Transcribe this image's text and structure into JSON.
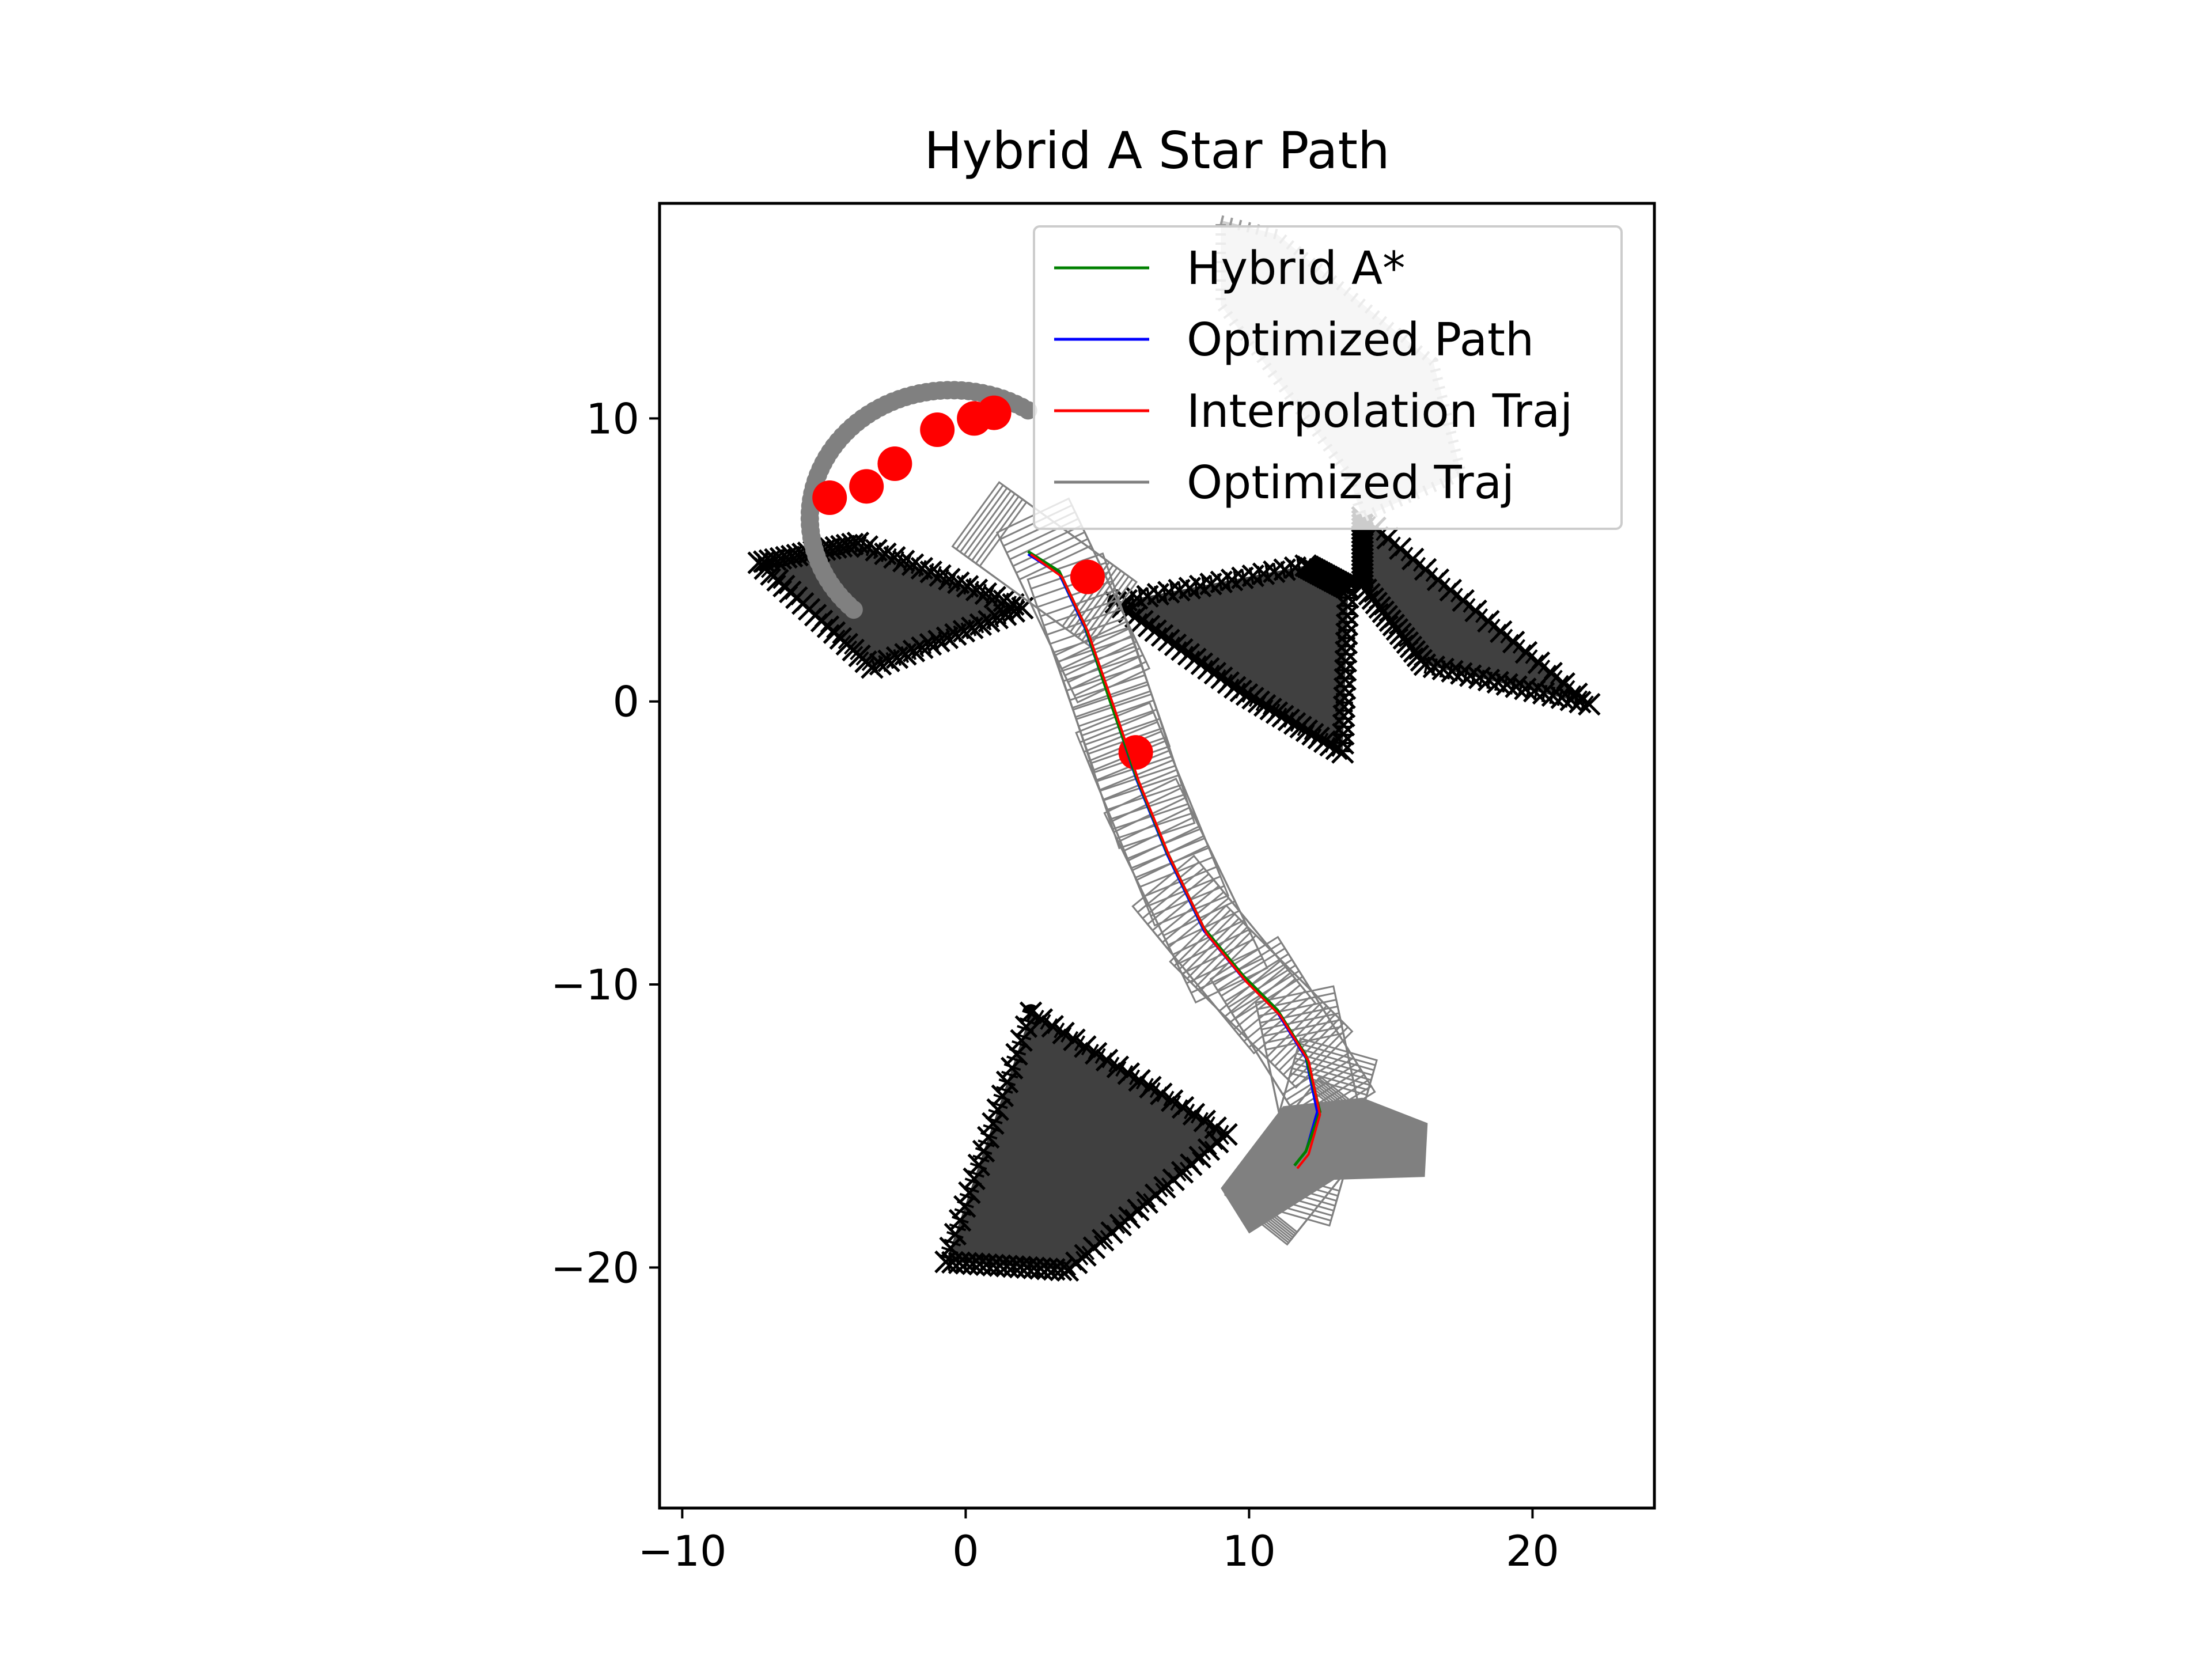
{
  "chart_data": {
    "type": "scatter",
    "title": "Hybrid A Star Path",
    "xlabel": "",
    "ylabel": "",
    "xlim": [
      -10.8,
      24.3
    ],
    "ylim": [
      -28.5,
      17.6
    ],
    "xticks": [
      {
        "value": -10,
        "label": "−10"
      },
      {
        "value": 0,
        "label": "0"
      },
      {
        "value": 10,
        "label": "10"
      },
      {
        "value": 20,
        "label": "20"
      }
    ],
    "yticks": [
      {
        "value": 10,
        "label": "10"
      },
      {
        "value": 0,
        "label": "0"
      },
      {
        "value": -10,
        "label": "−10"
      },
      {
        "value": -20,
        "label": "−20"
      }
    ],
    "grid": false,
    "legend": {
      "position": "top-right",
      "entries": [
        {
          "label": "Hybrid A*",
          "color": "#008000"
        },
        {
          "label": "Optimized Path",
          "color": "#0000ff"
        },
        {
          "label": "Interpolation Traj",
          "color": "#ff0000"
        },
        {
          "label": "Optimized Traj",
          "color": "#808080"
        }
      ]
    },
    "obstacles": [
      {
        "fill": "#404040",
        "points": [
          [
            -7.3,
            4.9
          ],
          [
            -3.8,
            5.6
          ],
          [
            2.0,
            3.3
          ],
          [
            -3.3,
            1.2
          ]
        ]
      },
      {
        "fill": "#404040",
        "points": [
          [
            5.3,
            3.5
          ],
          [
            12.0,
            4.8
          ],
          [
            13.5,
            4.0
          ],
          [
            13.3,
            -1.8
          ],
          [
            9.5,
            0.5
          ]
        ]
      },
      {
        "fill": "#404040",
        "points": [
          [
            14.0,
            6.5
          ],
          [
            22.0,
            -0.1
          ],
          [
            16.2,
            1.3
          ],
          [
            14.0,
            4.1
          ]
        ]
      },
      {
        "fill": "#404040",
        "points": [
          [
            2.3,
            -11.0
          ],
          [
            9.2,
            -15.3
          ],
          [
            3.6,
            -20.1
          ],
          [
            -0.7,
            -19.8
          ]
        ]
      }
    ],
    "obstacle_vertices_label": "x",
    "hybrid_astar_path": [
      [
        2.2,
        5.3
      ],
      [
        3.3,
        4.6
      ],
      [
        4.2,
        2.7
      ],
      [
        5.1,
        0.0
      ],
      [
        6.0,
        -2.6
      ],
      [
        7.1,
        -5.3
      ],
      [
        8.4,
        -8.0
      ],
      [
        9.8,
        -9.7
      ],
      [
        11.0,
        -10.9
      ],
      [
        12.0,
        -12.5
      ],
      [
        12.5,
        -14.5
      ],
      [
        12.0,
        -15.9
      ],
      [
        11.6,
        -16.4
      ]
    ],
    "optimized_path": [
      [
        2.2,
        5.2
      ],
      [
        3.3,
        4.5
      ],
      [
        4.2,
        2.6
      ],
      [
        5.1,
        0.0
      ],
      [
        6.0,
        -2.7
      ],
      [
        7.1,
        -5.4
      ],
      [
        8.4,
        -8.1
      ],
      [
        9.8,
        -9.8
      ],
      [
        11.0,
        -11.0
      ],
      [
        12.0,
        -12.6
      ],
      [
        12.4,
        -14.5
      ],
      [
        12.0,
        -15.9
      ],
      [
        11.6,
        -16.4
      ]
    ],
    "interpolation_traj": [
      [
        2.3,
        5.2
      ],
      [
        3.4,
        4.4
      ],
      [
        4.3,
        2.5
      ],
      [
        5.2,
        -0.1
      ],
      [
        6.1,
        -2.8
      ],
      [
        7.2,
        -5.5
      ],
      [
        8.5,
        -8.2
      ],
      [
        9.9,
        -9.9
      ],
      [
        11.1,
        -11.1
      ],
      [
        12.1,
        -12.7
      ],
      [
        12.5,
        -14.6
      ],
      [
        12.1,
        -16.0
      ],
      [
        11.7,
        -16.5
      ]
    ],
    "ego_start": [
      11.7,
      -16.0
    ],
    "ego_end": [
      2.8,
      4.6
    ],
    "start_footprint": [
      [
        9.0,
        -17.2
      ],
      [
        11.2,
        -14.3
      ],
      [
        14.0,
        -14.0
      ],
      [
        16.3,
        -14.9
      ],
      [
        16.2,
        -16.8
      ],
      [
        13.0,
        -16.9
      ],
      [
        10.0,
        -18.8
      ]
    ],
    "collision_points_color": "#ff0000",
    "trajectory_points_color": "#808080"
  }
}
